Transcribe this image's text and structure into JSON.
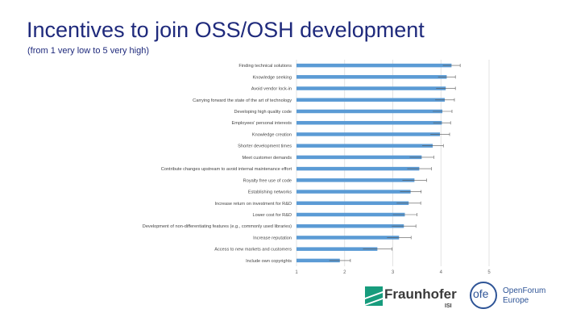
{
  "header": {
    "title": "Incentives to join OSS/OSH development",
    "subtitle": "(from 1 very low to 5 very high)"
  },
  "logos": {
    "fraunhofer_name": "Fraunhofer",
    "fraunhofer_sub": "ISI",
    "ofe_abbr": "ofe",
    "ofe_name": "OpenForum Europe",
    "fraunhofer_color": "#179c7d",
    "ofe_color": "#2f5597"
  },
  "chart_data": {
    "type": "bar",
    "orientation": "horizontal",
    "xlim": [
      1,
      5
    ],
    "x_ticks": [
      "1",
      "2",
      "3",
      "4",
      "5"
    ],
    "grid": true,
    "bar_color": "#5b9bd5",
    "categories": [
      "Finding technical solutions",
      "Knowledge seeking",
      "Avoid vendor lock-in",
      "Carrying forward the state of the art of technology",
      "Developing high quality code",
      "Employees' personal interests",
      "Knowledge creation",
      "Shorter development times",
      "Meet customer demands",
      "Contribute changes upstream to avoid internal maintenance effort",
      "Royalty free use of code",
      "Establishing networks",
      "Increase return on investment for R&D",
      "Lower cost for R&D",
      "Development of non-differentiating features (e.g., commonly used libraries)",
      "Increase reputation",
      "Access to new markets and customers",
      "Include own copyrights"
    ],
    "values": [
      4.22,
      4.12,
      4.1,
      4.08,
      4.03,
      4.02,
      3.98,
      3.83,
      3.6,
      3.55,
      3.45,
      3.37,
      3.33,
      3.25,
      3.23,
      3.13,
      2.68,
      1.9
    ],
    "error": [
      0.18,
      0.18,
      0.2,
      0.2,
      0.2,
      0.18,
      0.2,
      0.22,
      0.25,
      0.25,
      0.25,
      0.22,
      0.25,
      0.25,
      0.25,
      0.25,
      0.3,
      0.22
    ]
  }
}
